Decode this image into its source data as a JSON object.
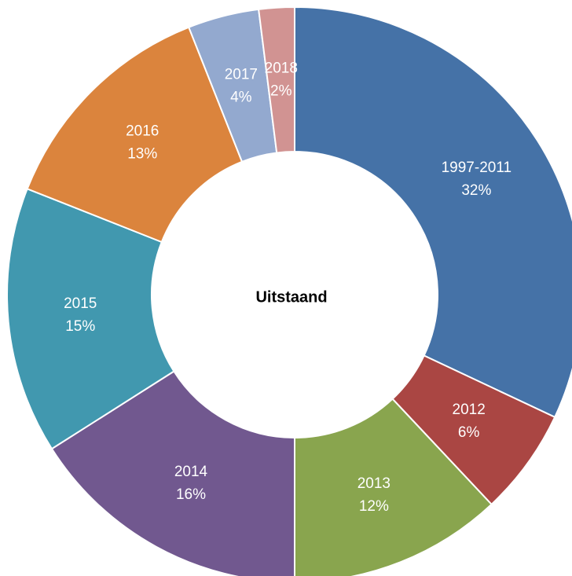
{
  "chart_data": {
    "type": "donut",
    "title": "Uitstaand",
    "categories": [
      "1997-2011",
      "2012",
      "2013",
      "2014",
      "2015",
      "2016",
      "2017",
      "2018"
    ],
    "values": [
      32,
      6,
      12,
      16,
      15,
      13,
      4,
      2
    ],
    "value_labels": [
      "32%",
      "6%",
      "12%",
      "16%",
      "15%",
      "13%",
      "4%",
      "2%"
    ],
    "colors": [
      "#4572a7",
      "#aa4643",
      "#89a54e",
      "#71588f",
      "#4198af",
      "#db843d",
      "#93a9cf",
      "#d19392"
    ]
  }
}
